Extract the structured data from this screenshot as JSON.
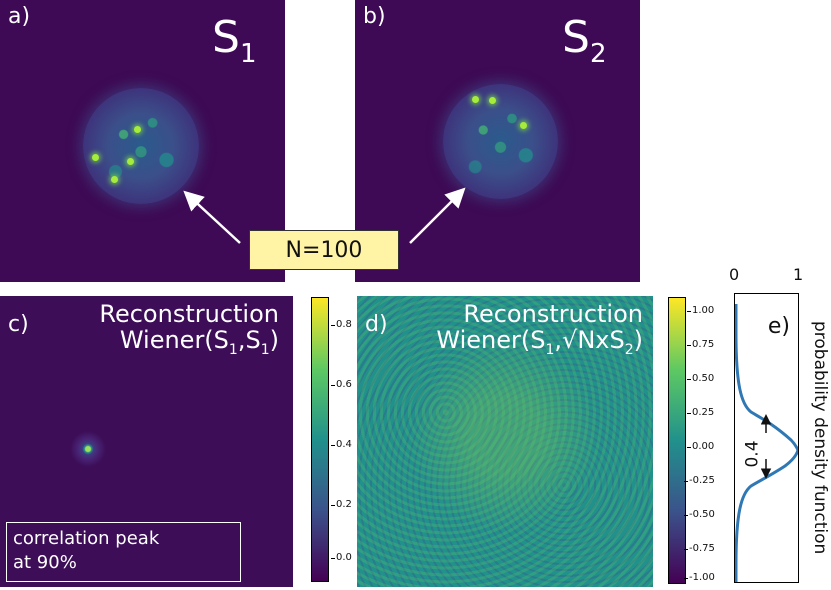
{
  "panel_a": {
    "label": "a)",
    "signal": "S",
    "signal_sub": "1"
  },
  "panel_b": {
    "label": "b)",
    "signal": "S",
    "signal_sub": "2"
  },
  "n_box": {
    "text": "N=100"
  },
  "panel_c": {
    "label": "c)",
    "title_line1": "Reconstruction",
    "title_line2_prefix": "Wiener(S",
    "title_line2_sub1": "1",
    "title_line2_mid": ",S",
    "title_line2_sub2": "1",
    "title_line2_suffix": ")",
    "annotation_line1": "correlation peak",
    "annotation_line2": "at 90%"
  },
  "colorbar_c": {
    "ticks": [
      "0.8",
      "0.6",
      "0.4",
      "0.2",
      "0.0"
    ]
  },
  "panel_d": {
    "label": "d)",
    "title_line1": "Reconstruction",
    "title_line2_prefix": "Wiener(S",
    "title_line2_sub1": "1",
    "title_line2_mid": ",√NxS",
    "title_line2_sub2": "2",
    "title_line2_suffix": ")"
  },
  "colorbar_d": {
    "ticks": [
      "1.00",
      "0.75",
      "0.50",
      "0.25",
      "0.00",
      "-0.25",
      "-0.50",
      "-0.75",
      "-1.00"
    ]
  },
  "panel_e": {
    "label": "e)",
    "x_ticks": [
      "0",
      "1"
    ],
    "ylabel": "probability density function",
    "width_annotation": "0.4"
  },
  "colors": {
    "background_dark": "#3e0a55",
    "n_box_fill": "#fff3a6",
    "curve": "#2f78b4"
  }
}
